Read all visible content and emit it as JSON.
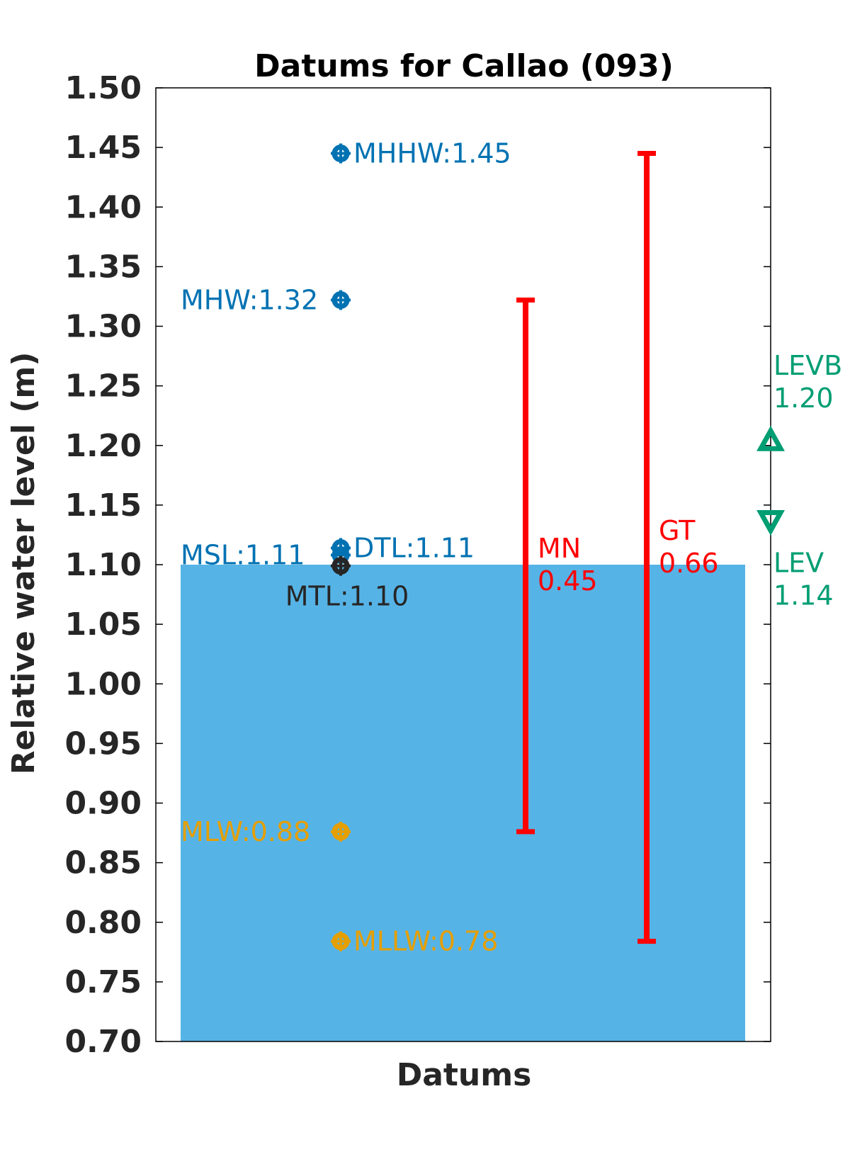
{
  "chart_data": {
    "type": "scatter",
    "title": "Datums for Callao (093)",
    "xlabel": "Datums",
    "ylabel": "Relative water level (m)",
    "ylim": [
      0.7,
      1.5
    ],
    "yticks": [
      "0.70",
      "0.75",
      "0.80",
      "0.85",
      "0.90",
      "0.95",
      "1.00",
      "1.05",
      "1.10",
      "1.15",
      "1.20",
      "1.25",
      "1.30",
      "1.35",
      "1.40",
      "1.45",
      "1.50"
    ],
    "grid": false,
    "water_fill": {
      "level": 1.1,
      "color": "#56b3e6"
    },
    "datums": [
      {
        "name": "MHHW",
        "value": 1.445,
        "label": "MHHW:1.45",
        "color": "#0072b2",
        "label_side": "right"
      },
      {
        "name": "MHW",
        "value": 1.322,
        "label": "MHW:1.32",
        "color": "#0072b2",
        "label_side": "left"
      },
      {
        "name": "DTL",
        "value": 1.114,
        "label": "DTL:1.11",
        "color": "#0072b2",
        "label_side": "right"
      },
      {
        "name": "MSL",
        "value": 1.108,
        "label": "MSL:1.11",
        "color": "#0072b2",
        "label_side": "left"
      },
      {
        "name": "MTL",
        "value": 1.099,
        "label": "MTL:1.10",
        "color": "#262626",
        "label_side": "below"
      },
      {
        "name": "MLW",
        "value": 0.876,
        "label": "MLW:0.88",
        "color": "#e69f00",
        "label_side": "left"
      },
      {
        "name": "MLLW",
        "value": 0.784,
        "label": "MLLW:0.78",
        "color": "#e69f00",
        "label_side": "right"
      }
    ],
    "ranges": [
      {
        "name": "MN",
        "from": 0.876,
        "to": 1.322,
        "label_name": "MN",
        "label_value": "0.45",
        "color": "#ff0000"
      },
      {
        "name": "GT",
        "from": 0.784,
        "to": 1.445,
        "label_name": "GT",
        "label_value": "0.66",
        "color": "#ff0000"
      }
    ],
    "extremes": [
      {
        "name": "LEVB",
        "value": 1.204,
        "label_name": "LEVB",
        "label_value": "1.20",
        "marker": "triangle-up",
        "color": "#009e73"
      },
      {
        "name": "LEV",
        "value": 1.137,
        "label_name": "LEV",
        "label_value": "1.14",
        "marker": "triangle-down",
        "color": "#009e73"
      }
    ]
  }
}
